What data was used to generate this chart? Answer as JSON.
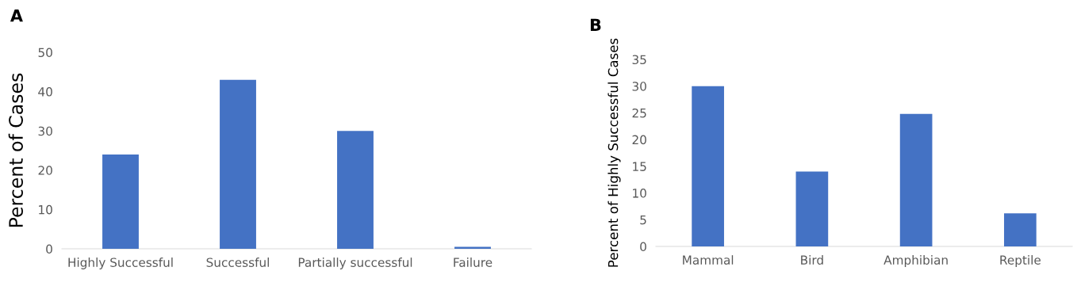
{
  "chart_data": [
    {
      "type": "bar",
      "title": "A",
      "ylabel": "Percent of Cases",
      "categories": [
        "Highly Successful",
        "Successful",
        "Partially successful",
        "Failure"
      ],
      "values": [
        24,
        43,
        30,
        0.5
      ],
      "color": "#4472c4",
      "ylim": [
        0,
        50
      ],
      "yticks": [
        0,
        10,
        20,
        30,
        40,
        50
      ],
      "grid": false
    },
    {
      "type": "bar",
      "title": "B",
      "ylabel": "Percent of Highly Successful Cases",
      "categories": [
        "Mammal",
        "Bird",
        "Amphibian",
        "Reptile"
      ],
      "values": [
        30,
        14,
        24.8,
        6.2
      ],
      "color": "#4472c4",
      "ylim": [
        0,
        35
      ],
      "yticks": [
        0,
        5,
        10,
        15,
        20,
        25,
        30,
        35
      ],
      "grid": false
    }
  ]
}
